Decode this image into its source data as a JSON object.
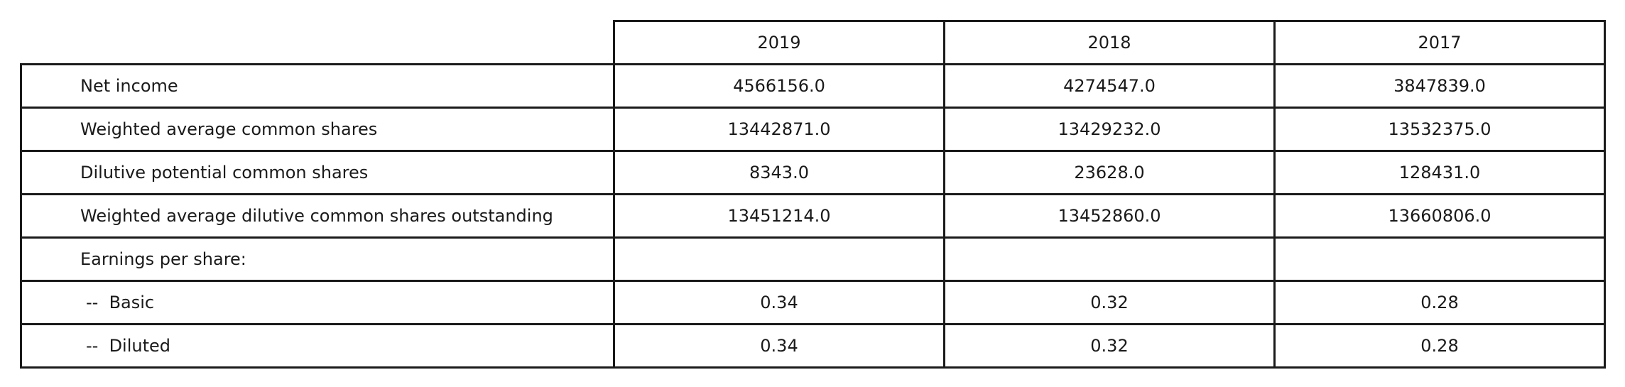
{
  "chart_data": {
    "type": "table",
    "columns": [
      "2019",
      "2018",
      "2017"
    ],
    "rows": [
      {
        "label": "Net income",
        "values": [
          "4566156.0",
          "4274547.0",
          "3847839.0"
        ]
      },
      {
        "label": "Weighted average common shares",
        "values": [
          "13442871.0",
          "13429232.0",
          "13532375.0"
        ]
      },
      {
        "label": "Dilutive potential common shares",
        "values": [
          "8343.0",
          "23628.0",
          "128431.0"
        ]
      },
      {
        "label": "Weighted average dilutive common shares outstanding",
        "values": [
          "13451214.0",
          "13452860.0",
          "13660806.0"
        ]
      },
      {
        "label": "Earnings per share:",
        "values": [
          "",
          "",
          ""
        ]
      },
      {
        "label": "--  Basic",
        "values": [
          "0.34",
          "0.32",
          "0.28"
        ]
      },
      {
        "label": "--  Diluted",
        "values": [
          "0.34",
          "0.32",
          "0.28"
        ]
      }
    ]
  }
}
